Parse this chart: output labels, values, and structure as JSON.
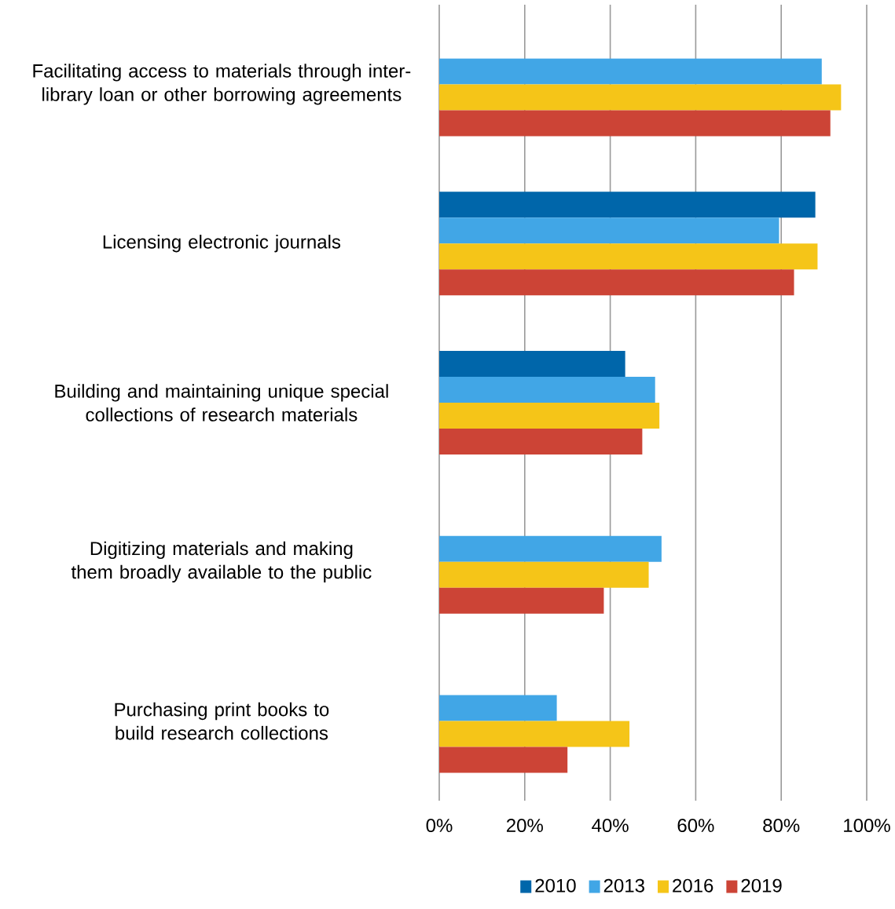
{
  "chart_data": {
    "type": "bar",
    "orientation": "horizontal",
    "categories": [
      "Facilitating access to materials through inter-library loan or other borrowing agreements",
      "Licensing electronic journals",
      "Building and maintaining unique special collections of research materials",
      "Digitizing materials and making them broadly available to the public",
      "Purchasing print books to build research collections"
    ],
    "series": [
      {
        "name": "2010",
        "color": "#0066aa",
        "values": [
          null,
          88,
          43.5,
          null,
          null
        ]
      },
      {
        "name": "2013",
        "color": "#41a6e6",
        "values": [
          89.5,
          79.5,
          50.5,
          52,
          27.5
        ]
      },
      {
        "name": "2016",
        "color": "#f5c518",
        "values": [
          94,
          88.5,
          51.5,
          49,
          44.5
        ]
      },
      {
        "name": "2019",
        "color": "#cc4436",
        "values": [
          91.5,
          83,
          47.5,
          38.5,
          30
        ]
      }
    ],
    "xlim": [
      0,
      100
    ],
    "xticks": [
      {
        "value": 0,
        "label": "0%"
      },
      {
        "value": 20,
        "label": "20%"
      },
      {
        "value": 40,
        "label": "40%"
      },
      {
        "value": 60,
        "label": "60%"
      },
      {
        "value": 80,
        "label": "80%"
      },
      {
        "value": 100,
        "label": "100%"
      }
    ],
    "grid": "x",
    "legend": "bottom"
  }
}
